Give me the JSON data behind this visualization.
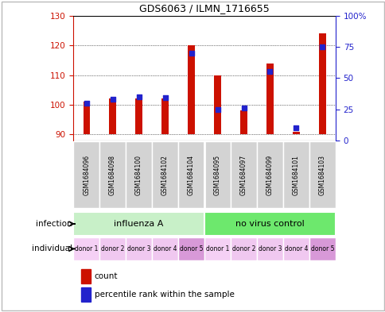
{
  "title": "GDS6063 / ILMN_1716655",
  "samples": [
    "GSM1684096",
    "GSM1684098",
    "GSM1684100",
    "GSM1684102",
    "GSM1684104",
    "GSM1684095",
    "GSM1684097",
    "GSM1684099",
    "GSM1684101",
    "GSM1684103"
  ],
  "counts": [
    101,
    102,
    102,
    102,
    120,
    110,
    98,
    114,
    91,
    124
  ],
  "percentiles": [
    30,
    33,
    35,
    34,
    70,
    25,
    26,
    55,
    10,
    75
  ],
  "ylim_left": [
    88,
    130
  ],
  "ylim_right": [
    0,
    100
  ],
  "yticks_left": [
    90,
    100,
    110,
    120,
    130
  ],
  "yticks_right": [
    0,
    25,
    50,
    75,
    100
  ],
  "infection_groups": [
    {
      "label": "influenza A",
      "start": 0,
      "end": 5,
      "color": "#c8f0c8"
    },
    {
      "label": "no virus control",
      "start": 5,
      "end": 10,
      "color": "#6de86d"
    }
  ],
  "individuals": [
    "donor 1",
    "donor 2",
    "donor 3",
    "donor 4",
    "donor 5",
    "donor 1",
    "donor 2",
    "donor 3",
    "donor 4",
    "donor 5"
  ],
  "ind_colors": [
    "#f5d0f5",
    "#f5d0f5",
    "#f5d0f5",
    "#f5d0f5",
    "#dd99dd",
    "#f5d0f5",
    "#f5d0f5",
    "#f5d0f5",
    "#f5d0f5",
    "#dd99dd"
  ],
  "bar_color": "#cc1100",
  "dot_color": "#2222cc",
  "axis_label_color_left": "#cc1100",
  "axis_label_color_right": "#2222cc",
  "bar_width": 0.25,
  "dot_size": 22,
  "base": 90
}
